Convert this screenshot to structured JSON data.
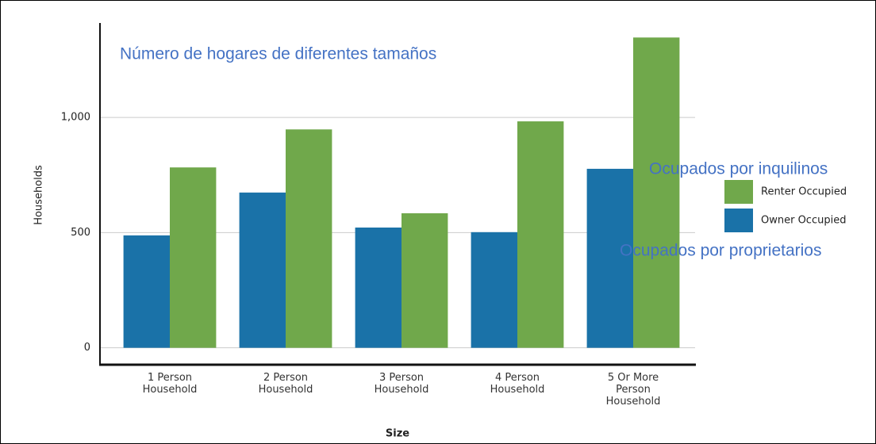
{
  "chart_data": {
    "type": "bar",
    "title": "Número de hogares de diferentes tamaños",
    "x_label": "Size",
    "y_label": "Households",
    "categories": [
      "1 Person Household",
      "2 Person Household",
      "3 Person Household",
      "4 Person Household",
      "5 Or More Person Household"
    ],
    "series": [
      {
        "name": "Owner Occupied",
        "color": "#1a72a8",
        "values": [
          488,
          674,
          522,
          502,
          777
        ]
      },
      {
        "name": "Renter Occupied",
        "color": "#70a84b",
        "values": [
          783,
          948,
          584,
          983,
          1347
        ]
      }
    ],
    "legend_order": [
      1,
      0
    ],
    "annotations": [
      "Ocupados por inquilinos",
      "Ocupados por proprietarios"
    ],
    "ylim": [
      -70,
      1410
    ],
    "yticks": [
      0,
      500,
      {
        "value": 1000,
        "label": "1,000"
      }
    ],
    "grid": true,
    "legend": "right"
  }
}
